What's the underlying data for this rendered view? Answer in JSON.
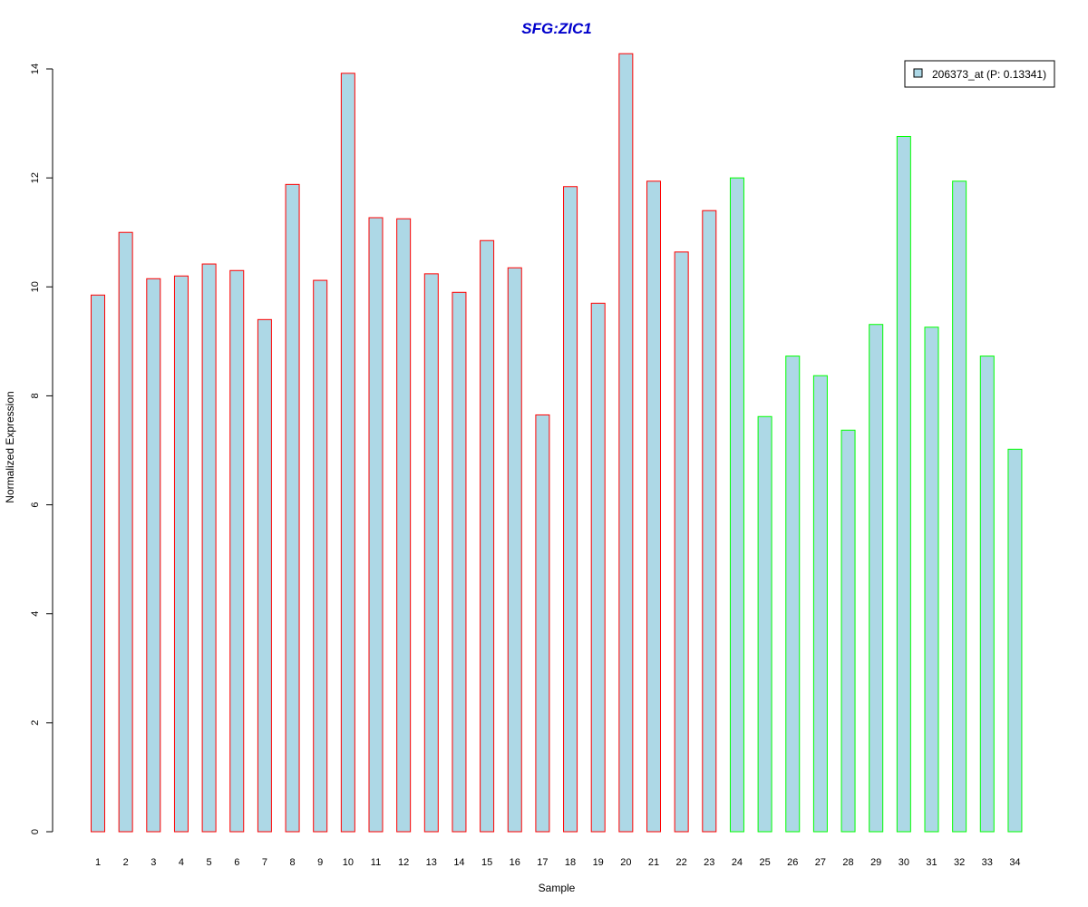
{
  "chart_data": {
    "type": "bar",
    "title": "SFG:ZIC1",
    "xlabel": "Sample",
    "ylabel": "Normalized Expression",
    "ylim": [
      0,
      14
    ],
    "yticks": [
      0,
      2,
      4,
      6,
      8,
      10,
      12,
      14
    ],
    "grid": false,
    "legend": {
      "placement": "top-right",
      "label": "206373_at (P: 0.13341)",
      "fill": "#add8e6"
    },
    "bar_fill": "#add8e6",
    "group_colors": {
      "group1": "#ff0000",
      "group2": "#00ff00"
    },
    "categories": [
      "1",
      "2",
      "3",
      "4",
      "5",
      "6",
      "7",
      "8",
      "9",
      "10",
      "11",
      "12",
      "13",
      "14",
      "15",
      "16",
      "17",
      "18",
      "19",
      "20",
      "21",
      "22",
      "23",
      "24",
      "25",
      "26",
      "27",
      "28",
      "29",
      "30",
      "31",
      "32",
      "33",
      "34"
    ],
    "values": [
      9.85,
      11.0,
      10.15,
      10.2,
      10.42,
      10.3,
      9.4,
      11.88,
      10.12,
      13.92,
      11.27,
      11.25,
      10.24,
      9.9,
      10.85,
      10.35,
      7.65,
      11.84,
      9.7,
      14.28,
      11.94,
      10.64,
      11.4,
      12.0,
      7.62,
      8.73,
      8.37,
      7.37,
      9.31,
      12.76,
      9.26,
      11.94,
      8.73,
      7.02
    ],
    "groups": [
      "group1",
      "group1",
      "group1",
      "group1",
      "group1",
      "group1",
      "group1",
      "group1",
      "group1",
      "group1",
      "group1",
      "group1",
      "group1",
      "group1",
      "group1",
      "group1",
      "group1",
      "group1",
      "group1",
      "group1",
      "group1",
      "group1",
      "group1",
      "group2",
      "group2",
      "group2",
      "group2",
      "group2",
      "group2",
      "group2",
      "group2",
      "group2",
      "group2",
      "group2"
    ]
  }
}
